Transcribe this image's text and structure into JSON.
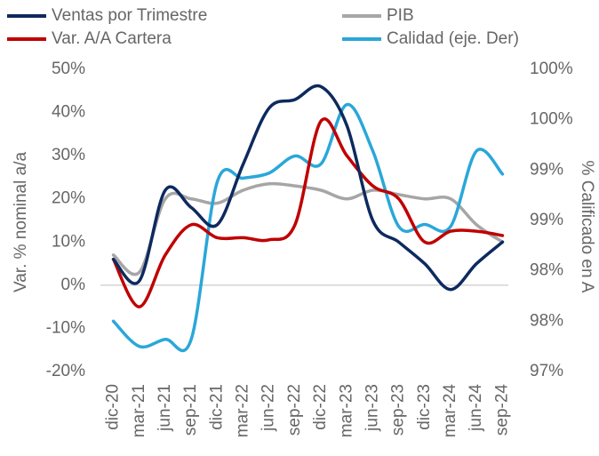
{
  "chart_data": {
    "type": "line",
    "categories": [
      "dic-20",
      "mar-21",
      "jun-21",
      "sep-21",
      "dic-21",
      "mar-22",
      "jun-22",
      "sep-22",
      "dic-22",
      "mar-23",
      "jun-23",
      "sep-23",
      "dic-23",
      "mar-24",
      "jun-24",
      "sep-24"
    ],
    "series": [
      {
        "name": "Ventas por Trimestre",
        "color": "#0d2a5e",
        "values": [
          6,
          1,
          22,
          18,
          14,
          28,
          41,
          43,
          46,
          37,
          15,
          10,
          5,
          -1,
          5,
          10
        ]
      },
      {
        "name": "PIB",
        "color": "#a6a6a6",
        "values": [
          7,
          3,
          20,
          20,
          19,
          22,
          23.5,
          23,
          22,
          20,
          22,
          21,
          20,
          20,
          14,
          10
        ]
      },
      {
        "name": "Var. A/A Cartera",
        "color": "#c00000",
        "values": [
          6,
          -5,
          7,
          14,
          11,
          11,
          10.5,
          14,
          38,
          30,
          23,
          20,
          10,
          12.5,
          12.5,
          11.5
        ]
      },
      {
        "name": "Calidad (eje. Der)",
        "color": "#2aa7d9",
        "axis": "y2",
        "values": [
          97.5,
          97.25,
          97.32,
          97.32,
          98.88,
          98.92,
          98.97,
          99.14,
          99.06,
          99.65,
          99.19,
          98.44,
          98.46,
          98.44,
          99.19,
          98.96
        ]
      }
    ],
    "ylabel": "Var. % nominal  a/a",
    "y2label": "% Calificado en A",
    "ylim": [
      -20,
      50
    ],
    "yticks": [
      {
        "value": -20,
        "label": "-20%"
      },
      {
        "value": -10,
        "label": "-10%"
      },
      {
        "value": 0,
        "label": "0%"
      },
      {
        "value": 10,
        "label": "10%"
      },
      {
        "value": 20,
        "label": "20%"
      },
      {
        "value": 30,
        "label": "30%"
      },
      {
        "value": 40,
        "label": "40%"
      },
      {
        "value": 50,
        "label": "50%"
      }
    ],
    "y2lim": [
      97,
      100
    ],
    "y2ticks": [
      {
        "value": 97,
        "label": "97%"
      },
      {
        "value": 97.5,
        "label": "98%"
      },
      {
        "value": 98,
        "label": "98%"
      },
      {
        "value": 98.5,
        "label": "99%"
      },
      {
        "value": 99,
        "label": "99%"
      },
      {
        "value": 99.5,
        "label": "100%"
      },
      {
        "value": 100,
        "label": "100%"
      }
    ],
    "legend": "top"
  }
}
